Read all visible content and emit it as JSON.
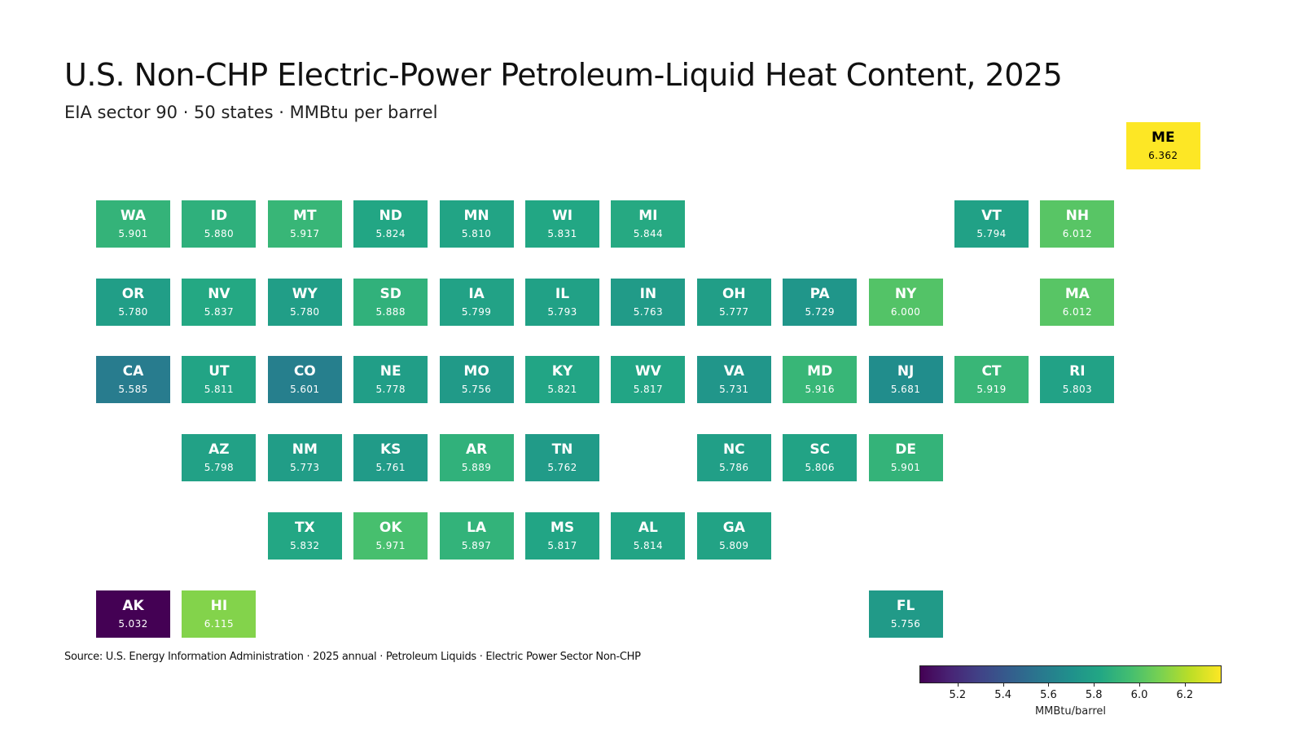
{
  "title": "U.S. Non-CHP Electric-Power Petroleum-Liquid Heat Content, 2025",
  "subtitle": "EIA sector 90 · 50 states · MMBtu per barrel",
  "source": "Source: U.S. Energy Information Administration · 2025 annual · Petroleum Liquids · Electric Power Sector Non-CHP",
  "colorbar": {
    "label": "MMBtu/barrel",
    "min": 5.032,
    "max": 6.362,
    "ticks": [
      "5.2",
      "5.4",
      "5.6",
      "5.8",
      "6.0",
      "6.2"
    ],
    "colormap": "viridis"
  },
  "chart_data": {
    "type": "heatmap",
    "layout": "tile-grid-map",
    "title": "U.S. Non-CHP Electric-Power Petroleum-Liquid Heat Content, 2025",
    "subtitle": "EIA sector 90 · 50 states · MMBtu per barrel",
    "value_label": "MMBtu/barrel",
    "states": [
      {
        "abbr": "ME",
        "value": "6.362",
        "row": 0,
        "col": 12
      },
      {
        "abbr": "WA",
        "value": "5.901",
        "row": 1,
        "col": 0
      },
      {
        "abbr": "ID",
        "value": "5.880",
        "row": 1,
        "col": 1
      },
      {
        "abbr": "MT",
        "value": "5.917",
        "row": 1,
        "col": 2
      },
      {
        "abbr": "ND",
        "value": "5.824",
        "row": 1,
        "col": 3
      },
      {
        "abbr": "MN",
        "value": "5.810",
        "row": 1,
        "col": 4
      },
      {
        "abbr": "WI",
        "value": "5.831",
        "row": 1,
        "col": 5
      },
      {
        "abbr": "MI",
        "value": "5.844",
        "row": 1,
        "col": 6
      },
      {
        "abbr": "VT",
        "value": "5.794",
        "row": 1,
        "col": 10
      },
      {
        "abbr": "NH",
        "value": "6.012",
        "row": 1,
        "col": 11
      },
      {
        "abbr": "OR",
        "value": "5.780",
        "row": 2,
        "col": 0
      },
      {
        "abbr": "NV",
        "value": "5.837",
        "row": 2,
        "col": 1
      },
      {
        "abbr": "WY",
        "value": "5.780",
        "row": 2,
        "col": 2
      },
      {
        "abbr": "SD",
        "value": "5.888",
        "row": 2,
        "col": 3
      },
      {
        "abbr": "IA",
        "value": "5.799",
        "row": 2,
        "col": 4
      },
      {
        "abbr": "IL",
        "value": "5.793",
        "row": 2,
        "col": 5
      },
      {
        "abbr": "IN",
        "value": "5.763",
        "row": 2,
        "col": 6
      },
      {
        "abbr": "OH",
        "value": "5.777",
        "row": 2,
        "col": 7
      },
      {
        "abbr": "PA",
        "value": "5.729",
        "row": 2,
        "col": 8
      },
      {
        "abbr": "NY",
        "value": "6.000",
        "row": 2,
        "col": 9
      },
      {
        "abbr": "MA",
        "value": "6.012",
        "row": 2,
        "col": 11
      },
      {
        "abbr": "CA",
        "value": "5.585",
        "row": 3,
        "col": 0
      },
      {
        "abbr": "UT",
        "value": "5.811",
        "row": 3,
        "col": 1
      },
      {
        "abbr": "CO",
        "value": "5.601",
        "row": 3,
        "col": 2
      },
      {
        "abbr": "NE",
        "value": "5.778",
        "row": 3,
        "col": 3
      },
      {
        "abbr": "MO",
        "value": "5.756",
        "row": 3,
        "col": 4
      },
      {
        "abbr": "KY",
        "value": "5.821",
        "row": 3,
        "col": 5
      },
      {
        "abbr": "WV",
        "value": "5.817",
        "row": 3,
        "col": 6
      },
      {
        "abbr": "VA",
        "value": "5.731",
        "row": 3,
        "col": 7
      },
      {
        "abbr": "MD",
        "value": "5.916",
        "row": 3,
        "col": 8
      },
      {
        "abbr": "NJ",
        "value": "5.681",
        "row": 3,
        "col": 9
      },
      {
        "abbr": "CT",
        "value": "5.919",
        "row": 3,
        "col": 10
      },
      {
        "abbr": "RI",
        "value": "5.803",
        "row": 3,
        "col": 11
      },
      {
        "abbr": "AZ",
        "value": "5.798",
        "row": 4,
        "col": 1
      },
      {
        "abbr": "NM",
        "value": "5.773",
        "row": 4,
        "col": 2
      },
      {
        "abbr": "KS",
        "value": "5.761",
        "row": 4,
        "col": 3
      },
      {
        "abbr": "AR",
        "value": "5.889",
        "row": 4,
        "col": 4
      },
      {
        "abbr": "TN",
        "value": "5.762",
        "row": 4,
        "col": 5
      },
      {
        "abbr": "NC",
        "value": "5.786",
        "row": 4,
        "col": 7
      },
      {
        "abbr": "SC",
        "value": "5.806",
        "row": 4,
        "col": 8
      },
      {
        "abbr": "DE",
        "value": "5.901",
        "row": 4,
        "col": 9
      },
      {
        "abbr": "TX",
        "value": "5.832",
        "row": 5,
        "col": 2
      },
      {
        "abbr": "OK",
        "value": "5.971",
        "row": 5,
        "col": 3
      },
      {
        "abbr": "LA",
        "value": "5.897",
        "row": 5,
        "col": 4
      },
      {
        "abbr": "MS",
        "value": "5.817",
        "row": 5,
        "col": 5
      },
      {
        "abbr": "AL",
        "value": "5.814",
        "row": 5,
        "col": 6
      },
      {
        "abbr": "GA",
        "value": "5.809",
        "row": 5,
        "col": 7
      },
      {
        "abbr": "AK",
        "value": "5.032",
        "row": 6,
        "col": 0
      },
      {
        "abbr": "HI",
        "value": "6.115",
        "row": 6,
        "col": 1
      },
      {
        "abbr": "FL",
        "value": "5.756",
        "row": 6,
        "col": 9
      }
    ]
  }
}
